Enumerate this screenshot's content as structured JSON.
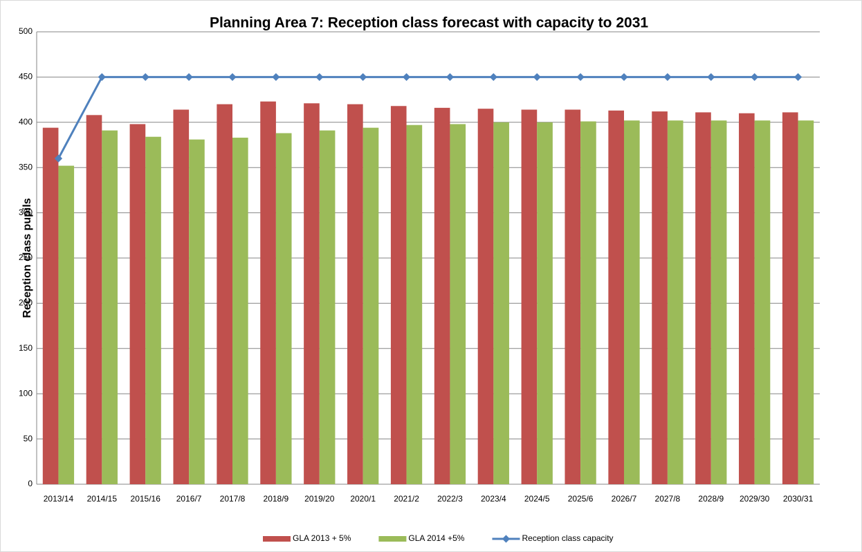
{
  "chart_data": {
    "type": "bar+line",
    "title": "Planning Area 7: Reception class forecast with capacity to 2031",
    "y_label": "Reception class pupils",
    "categories": [
      "2013/14",
      "2014/15",
      "2015/16",
      "2016/7",
      "2017/8",
      "2018/9",
      "2019/20",
      "2020/1",
      "2021/2",
      "2022/3",
      "2023/4",
      "2024/5",
      "2025/6",
      "2026/7",
      "2027/8",
      "2028/9",
      "2029/30",
      "2030/31"
    ],
    "series": [
      {
        "name": "GLA 2013 + 5%",
        "type": "bar",
        "color": "#c0504d",
        "values": [
          394,
          408,
          398,
          414,
          420,
          423,
          421,
          420,
          418,
          416,
          415,
          414,
          414,
          413,
          412,
          411,
          410,
          411
        ]
      },
      {
        "name": "GLA 2014 +5%",
        "type": "bar",
        "color": "#9bbb59",
        "values": [
          352,
          391,
          384,
          381,
          383,
          388,
          391,
          394,
          397,
          398,
          400,
          400,
          401,
          402,
          402,
          402,
          402,
          402
        ]
      },
      {
        "name": "Reception class capacity",
        "type": "line",
        "color": "#4f81bd",
        "values": [
          360,
          450,
          450,
          450,
          450,
          450,
          450,
          450,
          450,
          450,
          450,
          450,
          450,
          450,
          450,
          450,
          450,
          450
        ]
      }
    ],
    "ylim": [
      0,
      500
    ],
    "yticks": [
      0,
      50,
      100,
      150,
      200,
      250,
      300,
      350,
      400,
      450,
      500
    ],
    "grid": true,
    "legend": "bottom"
  }
}
